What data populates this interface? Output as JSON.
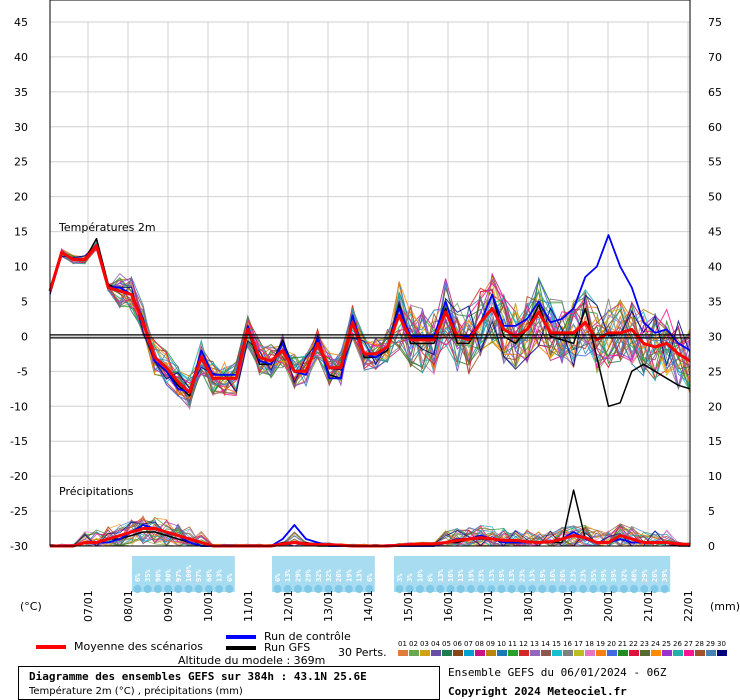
{
  "chart_data": {
    "type": "line",
    "left_axis": {
      "unit": "(°C)",
      "ticks": [
        45,
        40,
        35,
        30,
        25,
        20,
        15,
        10,
        5,
        0,
        -5,
        -10,
        -15,
        -20,
        -25,
        -30
      ],
      "ylim": [
        -30,
        45
      ]
    },
    "right_axis": {
      "unit": "(mm)",
      "ticks": [
        75,
        70,
        65,
        60,
        55,
        50,
        45,
        40,
        35,
        30,
        25,
        20,
        15,
        10,
        5,
        0
      ],
      "ylim": [
        0,
        75
      ]
    },
    "x_ticks": [
      "07/01",
      "08/01",
      "09/01",
      "10/01",
      "11/01",
      "12/01",
      "13/01",
      "14/01",
      "15/01",
      "16/01",
      "17/01",
      "18/01",
      "19/01",
      "20/01",
      "21/01",
      "22/01"
    ],
    "temp_panel_label": "Températures 2m",
    "precip_panel_label": "Précipitations",
    "time_hours_step": 6,
    "temperature_mean": [
      6.5,
      12,
      11,
      11,
      13,
      7,
      6.5,
      6,
      2,
      -3,
      -4.5,
      -6.5,
      -8,
      -3,
      -6,
      -6,
      -6,
      1,
      -3,
      -3.5,
      -2,
      -5,
      -5,
      -1,
      -4.5,
      -4.5,
      2,
      -2.5,
      -2.5,
      -1.5,
      3,
      -0.5,
      -0.5,
      -0.5,
      3.5,
      0,
      -0.5,
      2,
      4,
      1,
      0,
      1,
      3.5,
      0.5,
      0.5,
      0.5,
      2,
      -0.5,
      0.5,
      0.5,
      1,
      -1,
      -1.5,
      -1,
      -2.5,
      -3.5
    ],
    "temperature_control": [
      6.5,
      12,
      11,
      11,
      13,
      7,
      7,
      6,
      2.5,
      -3.5,
      -5,
      -7.5,
      -8,
      -2,
      -5.5,
      -5.5,
      -5.5,
      1.5,
      -3.5,
      -4,
      -1,
      -5,
      -5.5,
      0,
      -6,
      -6,
      3,
      -2.5,
      -3,
      -1.5,
      4,
      0,
      0,
      0,
      5,
      0,
      0,
      2,
      6,
      1.5,
      1.5,
      2.5,
      5,
      2,
      2.5,
      4,
      8.5,
      10,
      14.5,
      10,
      7,
      2,
      0.5,
      1,
      -1,
      -2
    ],
    "temperature_gfs": [
      6.5,
      12,
      11,
      11,
      14,
      7.5,
      6.5,
      6,
      2,
      -3.5,
      -5,
      -7,
      -8.5,
      -3,
      -6,
      -6,
      -6,
      1,
      -4,
      -4,
      -0.5,
      -5,
      -5.5,
      -0.5,
      -5.5,
      -6,
      3,
      -3,
      -3,
      -2,
      4.5,
      -1,
      -1,
      -1,
      4,
      -1,
      -1,
      2,
      6,
      0,
      -1,
      1,
      4.5,
      0,
      -0.5,
      -1,
      4,
      -3,
      -10,
      -9.5,
      -5,
      -4,
      -5,
      -6,
      -7,
      -7.5
    ],
    "precip_mean": [
      0,
      0,
      0,
      0.5,
      0.5,
      1,
      1.5,
      2,
      2.5,
      2.5,
      2,
      1.5,
      1,
      0.5,
      0,
      0,
      0,
      0,
      0,
      0,
      0.3,
      0.5,
      0.3,
      0.2,
      0.2,
      0.1,
      0,
      0,
      0,
      0,
      0.1,
      0.2,
      0.3,
      0.3,
      0.5,
      0.8,
      1,
      1.2,
      1,
      0.8,
      0.8,
      0.6,
      0.5,
      0.6,
      1,
      1.5,
      1.2,
      0.5,
      0.5,
      1.5,
      1,
      0.5,
      0.5,
      0.5,
      0.3,
      0.2
    ],
    "precip_control": [
      0,
      0,
      0,
      0.5,
      0.5,
      0.5,
      1,
      2,
      3,
      2.5,
      2,
      1.5,
      0.5,
      0,
      0,
      0,
      0,
      0,
      0,
      0,
      1,
      3,
      1,
      0.5,
      0,
      0,
      0,
      0,
      0,
      0,
      0,
      0,
      0,
      0,
      0.5,
      1,
      1,
      1.5,
      1,
      0.5,
      0.5,
      0.5,
      0.5,
      0.5,
      1,
      2,
      1,
      0.5,
      0.5,
      1,
      0.5,
      0.5,
      0.5,
      0.5,
      0.2,
      0
    ],
    "precip_gfs": [
      0,
      0,
      0,
      0.5,
      0.5,
      1,
      1,
      1.5,
      2,
      2,
      1.5,
      1,
      0.5,
      0,
      0,
      0,
      0,
      0,
      0,
      0,
      0.5,
      0.5,
      0.5,
      0,
      0,
      0,
      0,
      0,
      0,
      0,
      0,
      0,
      0,
      0,
      0.5,
      0.5,
      1,
      1,
      1,
      0.5,
      0.5,
      0.5,
      0.5,
      0.5,
      0.5,
      8,
      1,
      0.5,
      0.5,
      1,
      0.5,
      0.5,
      0.5,
      0.5,
      0,
      0
    ],
    "precip_probabilities": [
      {
        "day": "08/01",
        "values": [
          "6%",
          "35%",
          "90%",
          "90%",
          "97%",
          "100%",
          "97%",
          "68%",
          "13%",
          "6%"
        ]
      },
      {
        "day": "12/01",
        "values": [
          "6%",
          "13%",
          "29%",
          "29%",
          "32%",
          "32%",
          "26%",
          "19%",
          "13%",
          "6%"
        ]
      },
      {
        "day": "15/01",
        "values": [
          "3%",
          "3%",
          "10%",
          "6%",
          "13%",
          "16%",
          "13%",
          "19%",
          "23%",
          "13%",
          "19%",
          "13%",
          "23%",
          "13%",
          "19%",
          "16%",
          "26%",
          "23%",
          "23%",
          "35%",
          "39%",
          "39%",
          "32%",
          "48%",
          "29%",
          "26%",
          "39%"
        ]
      }
    ],
    "title": "Diagramme des ensembles GEFS sur 384h : 43.1N 25.6E",
    "subtitle": "Température 2m (°C) , précipitations (mm)"
  },
  "legend": {
    "mean_label": "Moyenne des scénarios",
    "control_label": "Run de contrôle",
    "gfs_label": "Run GFS",
    "perts_label": "30 Perts.",
    "altitude_label": "Altitude du modele : 369m",
    "mean_color": "#ff0000",
    "control_color": "#0000ff",
    "gfs_color": "#000000"
  },
  "members": {
    "labels": [
      "01",
      "02",
      "03",
      "04",
      "05",
      "06",
      "07",
      "08",
      "09",
      "10",
      "11",
      "12",
      "13",
      "14",
      "15",
      "16",
      "17",
      "18",
      "19",
      "20",
      "21",
      "22",
      "23",
      "24",
      "25",
      "26",
      "27",
      "28",
      "29",
      "30"
    ],
    "colors": [
      "#e07b39",
      "#6aa84f",
      "#d4a017",
      "#674ea7",
      "#1e7a4f",
      "#8b4513",
      "#00a0d0",
      "#c71585",
      "#b8860b",
      "#1f77b4",
      "#2ca02c",
      "#d62728",
      "#9467bd",
      "#8c564b",
      "#17becf",
      "#7f7f7f",
      "#bcbd22",
      "#e377c2",
      "#ff7f0e",
      "#4169e1",
      "#228b22",
      "#dc143c",
      "#556b2f",
      "#ff8c00",
      "#9932cc",
      "#20b2aa",
      "#ff1493",
      "#a0522d",
      "#4682b4",
      "#000080"
    ]
  },
  "footer": {
    "ensemble_label": "Ensemble GEFS du 06/01/2024 - 06Z",
    "copyright": "Copyright 2024 Meteociel.fr"
  }
}
